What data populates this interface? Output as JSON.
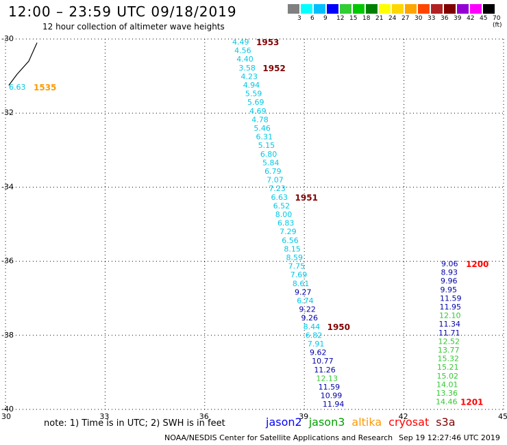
{
  "title": "12:00 – 23:59 UTC 09/18/2019",
  "subtitle": "12 hour collection of altimeter wave heights",
  "colorscale": {
    "labels": [
      "3",
      "6",
      "9",
      "12",
      "15",
      "18",
      "21",
      "24",
      "27",
      "30",
      "33",
      "36",
      "39",
      "42",
      "45",
      "70 (ft)"
    ],
    "colors": [
      "#808080",
      "#00ffff",
      "#00bfff",
      "#0000ff",
      "#32cd32",
      "#00c800",
      "#008000",
      "#ffff00",
      "#ffd700",
      "#ffa500",
      "#ff4500",
      "#b22222",
      "#800000",
      "#9400d3",
      "#ff00ff",
      "#000000"
    ]
  },
  "map": {
    "lon_range": [
      30,
      45
    ],
    "lat_range": [
      -30,
      -40
    ],
    "lon_ticks": [
      "30",
      "33",
      "36",
      "39",
      "42",
      "45"
    ],
    "lat_ticks": [
      "-30",
      "-32",
      "-34",
      "-36",
      "-38",
      "-40"
    ],
    "grid": "dotted"
  },
  "colors": {
    "cyan": "#00c8e6",
    "navy": "#0000aa",
    "green": "#32c832",
    "darkred": "#800000",
    "red": "#ff0000",
    "orange": "#ff9900"
  },
  "coastline": [
    [
      30.1,
      -31.25
    ],
    [
      30.35,
      -30.95
    ],
    [
      30.7,
      -30.6
    ],
    [
      30.95,
      -30.1
    ]
  ],
  "track1": {
    "wave_heights": [
      "4.49",
      "4.56",
      "4.40",
      "3.58",
      "4.23",
      "4.94",
      "5.59",
      "5.69",
      "4.69",
      "4.78",
      "5.46",
      "6.31",
      "5.15",
      "6.80",
      "5.84",
      "6.79",
      "7.07",
      "7.23",
      "6.63",
      "6.52",
      "8.00",
      "6.83",
      "7.29",
      "6.56",
      "8.15",
      "8.59",
      "7.75",
      "7.69",
      "8.61",
      "9.27",
      "6.74",
      "9.22",
      "9.26",
      "8.44",
      "6.82",
      "7.91",
      "9.62",
      "10.77",
      "11.26",
      "12.13",
      "11.59",
      "10.99",
      "11.94"
    ],
    "value_colors": [
      "cyan",
      "cyan",
      "cyan",
      "cyan",
      "cyan",
      "cyan",
      "cyan",
      "cyan",
      "cyan",
      "cyan",
      "cyan",
      "cyan",
      "cyan",
      "cyan",
      "cyan",
      "cyan",
      "cyan",
      "cyan",
      "cyan",
      "cyan",
      "cyan",
      "cyan",
      "cyan",
      "cyan",
      "cyan",
      "cyan",
      "cyan",
      "cyan",
      "cyan",
      "navy",
      "cyan",
      "navy",
      "navy",
      "cyan",
      "cyan",
      "cyan",
      "navy",
      "navy",
      "navy",
      "green",
      "navy",
      "navy",
      "navy"
    ],
    "times": [
      {
        "label": "1953",
        "color": "darkred",
        "index": 0
      },
      {
        "label": "1952",
        "color": "darkred",
        "index": 3
      },
      {
        "label": "1951",
        "color": "darkred",
        "index": 18
      },
      {
        "label": "1950",
        "color": "darkred",
        "index": 33
      }
    ]
  },
  "track2": {
    "wave_heights": [
      "9.06",
      "8.93",
      "9.96",
      "9.95",
      "11.59",
      "11.95",
      "12.10",
      "11.34",
      "11.71",
      "12.52",
      "13.77",
      "15.32",
      "15.21",
      "15.02",
      "14.01",
      "13.36",
      "14.46"
    ],
    "value_colors": [
      "navy",
      "navy",
      "navy",
      "navy",
      "navy",
      "navy",
      "green",
      "navy",
      "navy",
      "green",
      "green",
      "green",
      "green",
      "green",
      "green",
      "green",
      "green"
    ],
    "times": [
      {
        "label": "1200",
        "color": "red",
        "index": 0
      },
      {
        "label": "1201",
        "color": "red",
        "index": 16
      }
    ]
  },
  "track3": {
    "wave_heights": [
      "6.63"
    ],
    "value_colors": [
      "cyan"
    ],
    "times": [
      {
        "label": "1535",
        "color": "orange",
        "index": 0
      }
    ]
  },
  "note": "note: 1) Time is in UTC; 2) SWH is in feet",
  "satellites": [
    {
      "name": "jason2",
      "color": "#0000ff"
    },
    {
      "name": "jason3",
      "color": "#00a000"
    },
    {
      "name": "altika",
      "color": "#ff9900"
    },
    {
      "name": "cryosat",
      "color": "#ff0000"
    },
    {
      "name": "s3a",
      "color": "#800000"
    }
  ],
  "credit": "NOAA/NESDIS Center for Satellite Applications and Research",
  "timestamp": "Sep 19 12:27:46 UTC 2019"
}
